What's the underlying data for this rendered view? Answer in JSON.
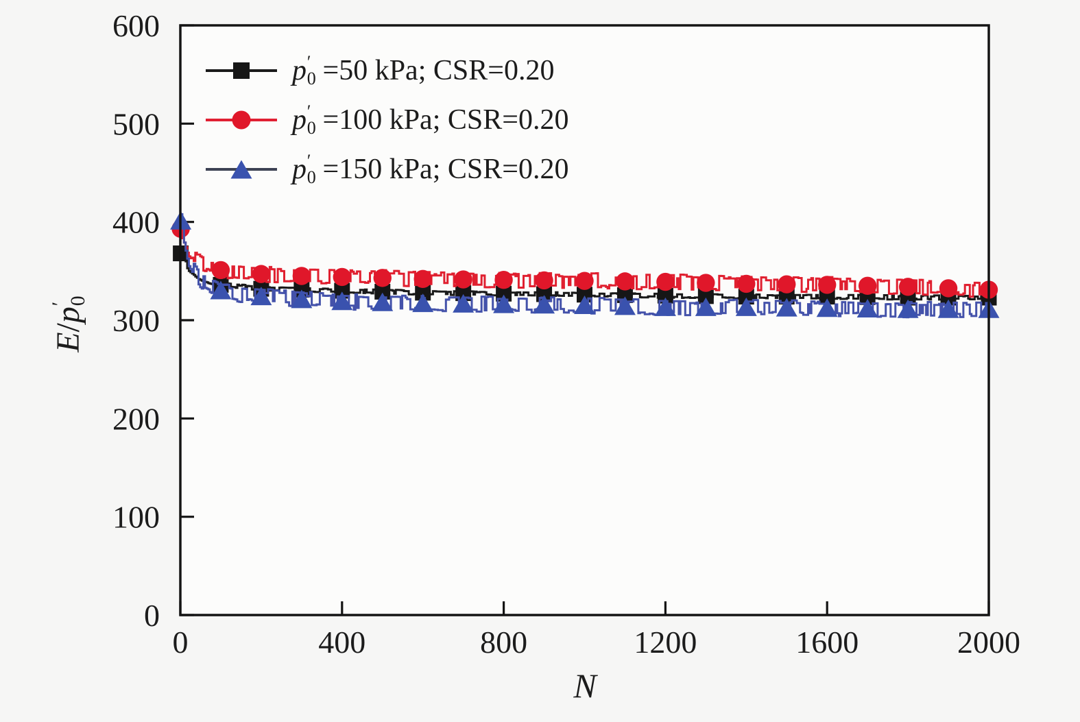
{
  "figure": {
    "background": "#f6f6f5",
    "plot_background": "#fcfcfb",
    "border_color": "#141414",
    "text_color": "#1c1c1c"
  },
  "axes": {
    "x": {
      "label": "N",
      "min": 0,
      "max": 2000,
      "ticks": [
        0,
        400,
        800,
        1200,
        1600,
        2000
      ]
    },
    "y": {
      "label_parts": {
        "e": "E",
        "slash": "/",
        "p": "p",
        "prime": "′",
        "sub": "0"
      },
      "min": 0,
      "max": 600,
      "ticks": [
        0,
        100,
        200,
        300,
        400,
        500,
        600
      ]
    }
  },
  "legend": {
    "position": "top-left-inside",
    "items": [
      {
        "p": "p",
        "prime": "′",
        "sub": "0",
        "rest": "=50 kPa; CSR=0.20",
        "marker": "square",
        "marker_color": "#161616",
        "legend_line_color": "#1a1a1a"
      },
      {
        "p": "p",
        "prime": "′",
        "sub": "0",
        "rest": "=100 kPa; CSR=0.20",
        "marker": "circle",
        "marker_color": "#e0172a",
        "legend_line_color": "#e02033"
      },
      {
        "p": "p",
        "prime": "′",
        "sub": "0",
        "rest": "=150 kPa; CSR=0.20",
        "marker": "triangle",
        "marker_color": "#3a52ae",
        "legend_line_color": "#3d4254"
      }
    ]
  },
  "chart_data": {
    "type": "line",
    "title": "",
    "xlabel": "N",
    "ylabel": "E/p0'",
    "xlim": [
      0,
      2000
    ],
    "ylim": [
      0,
      600
    ],
    "grid": false,
    "legend_position": "top-left-inside",
    "marker_x": [
      1,
      100,
      200,
      300,
      400,
      500,
      600,
      700,
      800,
      900,
      1000,
      1100,
      1200,
      1300,
      1400,
      1500,
      1600,
      1700,
      1800,
      1900,
      2000
    ],
    "series": [
      {
        "name": "p0'=50 kPa; CSR=0.20",
        "marker": "square",
        "line_color": "#1a1a1a",
        "marker_color": "#161616",
        "noise_amp": 2.2,
        "seed": 11,
        "x": [
          1,
          20,
          50,
          100,
          200,
          300,
          400,
          500,
          600,
          800,
          1000,
          1200,
          1400,
          1600,
          1800,
          2000
        ],
        "y": [
          368,
          352,
          342,
          336,
          332,
          331,
          330,
          329,
          328,
          327,
          326,
          325,
          324,
          324,
          323,
          323
        ]
      },
      {
        "name": "p0'=100 kPa; CSR=0.20",
        "marker": "circle",
        "line_color": "#e02030",
        "marker_color": "#e0172a",
        "noise_amp": 8.0,
        "seed": 22,
        "x": [
          1,
          20,
          50,
          100,
          150,
          200,
          300,
          400,
          500,
          600,
          800,
          1000,
          1200,
          1400,
          1600,
          1800,
          2000
        ],
        "y": [
          393,
          372,
          358,
          351,
          348,
          347,
          345,
          344,
          343,
          342,
          341,
          340,
          339,
          337,
          336,
          334,
          331
        ]
      },
      {
        "name": "p0'=150 kPa; CSR=0.20",
        "marker": "triangle",
        "line_color": "#4452aa",
        "marker_color": "#3a52ae",
        "noise_amp": 8.0,
        "seed": 33,
        "x": [
          1,
          20,
          50,
          100,
          150,
          200,
          300,
          400,
          500,
          600,
          800,
          1000,
          1200,
          1400,
          1600,
          1800,
          2000
        ],
        "y": [
          401,
          362,
          340,
          330,
          326,
          324,
          321,
          319,
          318,
          317,
          316,
          315,
          313,
          313,
          312,
          311,
          311
        ]
      }
    ]
  }
}
